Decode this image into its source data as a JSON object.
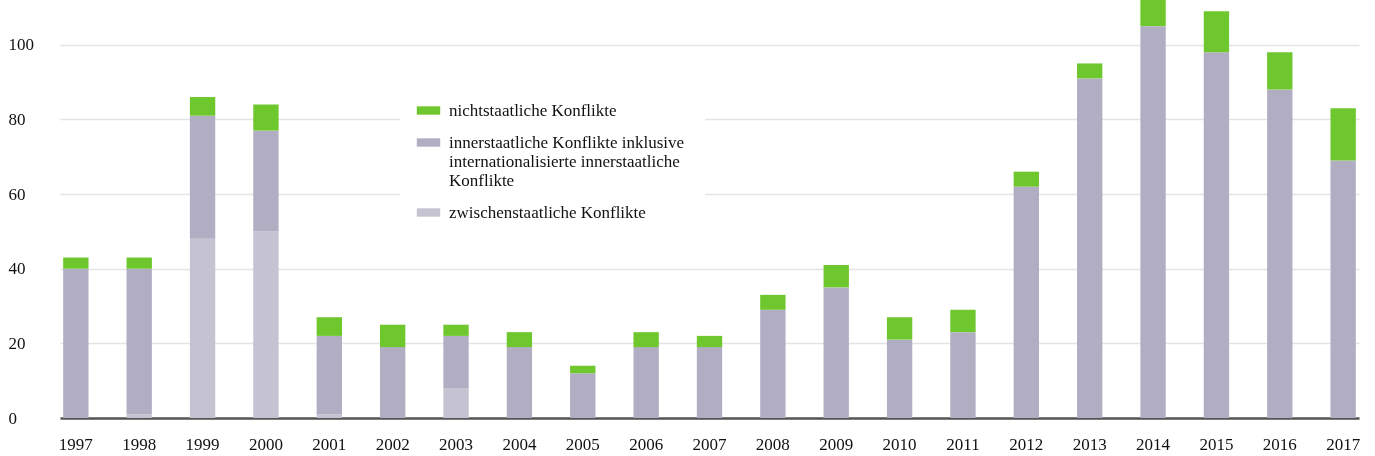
{
  "chart_data": {
    "type": "bar",
    "stacked": true,
    "categories": [
      "1997",
      "1998",
      "1999",
      "2000",
      "2001",
      "2002",
      "2003",
      "2004",
      "2005",
      "2006",
      "2007",
      "2008",
      "2009",
      "2010",
      "2011",
      "2012",
      "2013",
      "2014",
      "2015",
      "2016",
      "2017"
    ],
    "series": [
      {
        "name": "zwischenstaatliche Konflikte",
        "color": "#c5c3d1",
        "values": [
          0,
          1,
          48,
          50,
          1,
          0,
          8,
          0,
          0,
          0,
          0,
          0,
          0,
          0,
          0,
          0,
          0,
          0,
          0,
          0,
          0
        ]
      },
      {
        "name": "innerstaatliche Konflikte inklusive internationalisierte innerstaatliche Konflikte",
        "color": "#b1aec3",
        "values": [
          40,
          39,
          33,
          27,
          21,
          19,
          14,
          19,
          12,
          19,
          19,
          29,
          35,
          21,
          23,
          62,
          91,
          105,
          98,
          88,
          69
        ]
      },
      {
        "name": "nichtstaatliche Konflikte",
        "color": "#6ec72c",
        "values": [
          3,
          3,
          5,
          7,
          5,
          6,
          3,
          4,
          2,
          4,
          3,
          4,
          6,
          6,
          6,
          4,
          4,
          7,
          11,
          10,
          14
        ]
      }
    ],
    "ylim": [
      0,
      112
    ],
    "yticks": [
      0,
      20,
      40,
      60,
      80,
      100
    ],
    "grid": "y",
    "legend": "top"
  }
}
